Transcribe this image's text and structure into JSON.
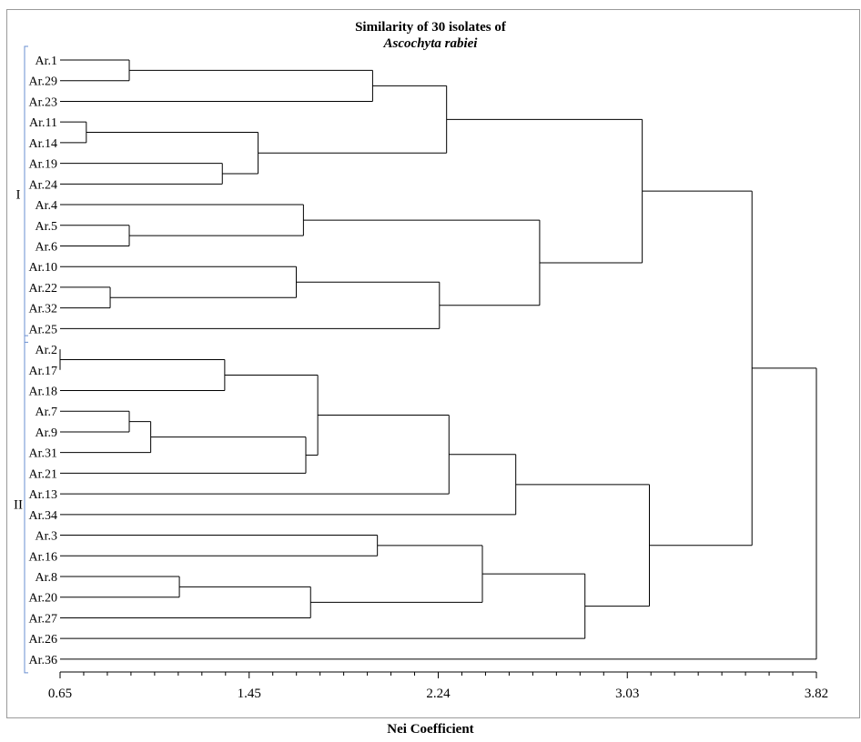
{
  "chart_data": {
    "type": "dendrogram",
    "title": "Similarity of 30 isolates of",
    "subtitle": "Ascochyta rabiei",
    "xlabel": "Nei Coefficient",
    "xlim": [
      0.65,
      3.82
    ],
    "x_ticks": [
      "0.65",
      "1.45",
      "2.24",
      "3.03",
      "3.82"
    ],
    "leaves": [
      "Ar.1",
      "Ar.29",
      "Ar.23",
      "Ar.11",
      "Ar.14",
      "Ar.19",
      "Ar.24",
      "Ar.4",
      "Ar.5",
      "Ar.6",
      "Ar.10",
      "Ar.22",
      "Ar.32",
      "Ar.25",
      "Ar.2",
      "Ar.17",
      "Ar.18",
      "Ar.7",
      "Ar.9",
      "Ar.31",
      "Ar.21",
      "Ar.13",
      "Ar.34",
      "Ar.3",
      "Ar.16",
      "Ar.8",
      "Ar.20",
      "Ar.27",
      "Ar.26",
      "Ar.36"
    ],
    "groups": [
      {
        "label": "I",
        "first": 0,
        "last": 13
      },
      {
        "label": "II",
        "first": 14,
        "last": 29
      }
    ],
    "merges": [
      {
        "a": "Ar.1",
        "b": "Ar.29",
        "height": 0.94,
        "id": "n1"
      },
      {
        "a": "n1",
        "b": "Ar.23",
        "height": 1.96,
        "id": "n2"
      },
      {
        "a": "Ar.11",
        "b": "Ar.14",
        "height": 0.76,
        "id": "n3"
      },
      {
        "a": "Ar.19",
        "b": "Ar.24",
        "height": 1.33,
        "id": "n4"
      },
      {
        "a": "n3",
        "b": "n4",
        "height": 1.48,
        "id": "n5"
      },
      {
        "a": "n2",
        "b": "n5",
        "height": 2.27,
        "id": "n6"
      },
      {
        "a": "Ar.5",
        "b": "Ar.6",
        "height": 0.94,
        "id": "n7"
      },
      {
        "a": "Ar.4",
        "b": "n7",
        "height": 1.67,
        "id": "n8"
      },
      {
        "a": "Ar.22",
        "b": "Ar.32",
        "height": 0.86,
        "id": "n9"
      },
      {
        "a": "Ar.10",
        "b": "n9",
        "height": 1.64,
        "id": "n10"
      },
      {
        "a": "n10",
        "b": "Ar.25",
        "height": 2.24,
        "id": "n11"
      },
      {
        "a": "n8",
        "b": "n11",
        "height": 2.66,
        "id": "n12"
      },
      {
        "a": "n6",
        "b": "n12",
        "height": 3.09,
        "id": "n13"
      },
      {
        "a": "Ar.2",
        "b": "Ar.17",
        "height": 0.65,
        "id": "n14"
      },
      {
        "a": "n14",
        "b": "Ar.18",
        "height": 1.34,
        "id": "n15"
      },
      {
        "a": "Ar.7",
        "b": "Ar.9",
        "height": 0.94,
        "id": "n16"
      },
      {
        "a": "n16",
        "b": "Ar.31",
        "height": 1.03,
        "id": "n17"
      },
      {
        "a": "n17",
        "b": "Ar.21",
        "height": 1.68,
        "id": "n18"
      },
      {
        "a": "n15",
        "b": "n18",
        "height": 1.73,
        "id": "n19"
      },
      {
        "a": "n19",
        "b": "Ar.13",
        "height": 2.28,
        "id": "n20"
      },
      {
        "a": "n20",
        "b": "Ar.34",
        "height": 2.56,
        "id": "n21"
      },
      {
        "a": "Ar.8",
        "b": "Ar.20",
        "height": 1.15,
        "id": "n22"
      },
      {
        "a": "n22",
        "b": "Ar.27",
        "height": 1.7,
        "id": "n23"
      },
      {
        "a": "Ar.3",
        "b": "Ar.16",
        "height": 1.98,
        "id": "n24"
      },
      {
        "a": "n24",
        "b": "n23",
        "height": 2.42,
        "id": "n25"
      },
      {
        "a": "n25",
        "b": "Ar.26",
        "height": 2.85,
        "id": "n26"
      },
      {
        "a": "n21",
        "b": "n26",
        "height": 3.12,
        "id": "n27"
      },
      {
        "a": "n13",
        "b": "n27",
        "height": 3.55,
        "id": "n28"
      },
      {
        "a": "n28",
        "b": "Ar.36",
        "height": 3.82,
        "id": "n29"
      }
    ]
  }
}
